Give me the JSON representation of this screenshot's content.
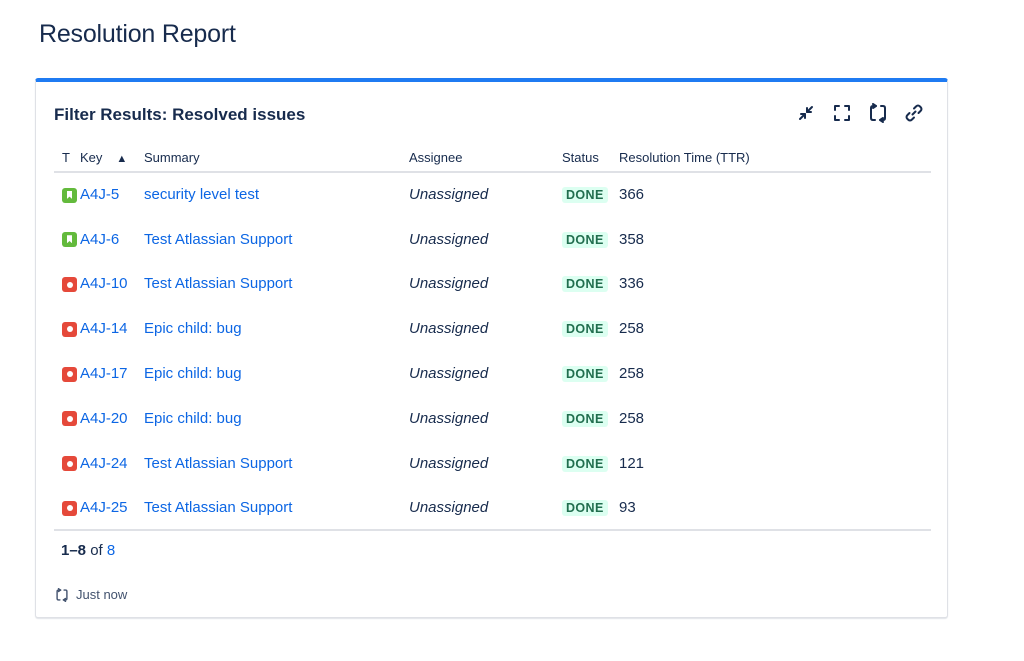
{
  "page": {
    "title": "Resolution Report"
  },
  "gadget": {
    "title": "Filter Results: Resolved issues",
    "accent_color": "#1f7bf2",
    "toolbar": [
      {
        "icon": "minimize-icon",
        "label": "Minimize"
      },
      {
        "icon": "fullscreen-icon",
        "label": "Full screen"
      },
      {
        "icon": "refresh-icon",
        "label": "Refresh"
      },
      {
        "icon": "link-icon",
        "label": "Copy link"
      }
    ],
    "columns": {
      "type": "T",
      "key": "Key",
      "summary": "Summary",
      "assignee": "Assignee",
      "status": "Status",
      "ttr": "Resolution Time (TTR)"
    },
    "sort": {
      "column": "key",
      "direction": "ascending"
    },
    "rows": [
      {
        "type": "story",
        "key": "A4J-5",
        "summary": "security level test",
        "assignee": "Unassigned",
        "status": "DONE",
        "ttr": "366"
      },
      {
        "type": "story",
        "key": "A4J-6",
        "summary": "Test Atlassian Support",
        "assignee": "Unassigned",
        "status": "DONE",
        "ttr": "358"
      },
      {
        "type": "bug",
        "key": "A4J-10",
        "summary": "Test Atlassian Support",
        "assignee": "Unassigned",
        "status": "DONE",
        "ttr": "336"
      },
      {
        "type": "bug",
        "key": "A4J-14",
        "summary": "Epic child: bug",
        "assignee": "Unassigned",
        "status": "DONE",
        "ttr": "258"
      },
      {
        "type": "bug",
        "key": "A4J-17",
        "summary": "Epic child: bug",
        "assignee": "Unassigned",
        "status": "DONE",
        "ttr": "258"
      },
      {
        "type": "bug",
        "key": "A4J-20",
        "summary": "Epic child: bug",
        "assignee": "Unassigned",
        "status": "DONE",
        "ttr": "258"
      },
      {
        "type": "bug",
        "key": "A4J-24",
        "summary": "Test Atlassian Support",
        "assignee": "Unassigned",
        "status": "DONE",
        "ttr": "121"
      },
      {
        "type": "bug",
        "key": "A4J-25",
        "summary": "Test Atlassian Support",
        "assignee": "Unassigned",
        "status": "DONE",
        "ttr": "93"
      }
    ],
    "pagination": {
      "range": "1–8",
      "of_label": "of",
      "total": "8"
    },
    "footer": {
      "refresh_icon": "refresh-icon",
      "updated": "Just now"
    }
  },
  "colors": {
    "link": "#0c66e4",
    "story": "#63ba3c",
    "bug": "#e5493a",
    "done_bg": "#dcfff1",
    "done_text": "#216e4e"
  }
}
